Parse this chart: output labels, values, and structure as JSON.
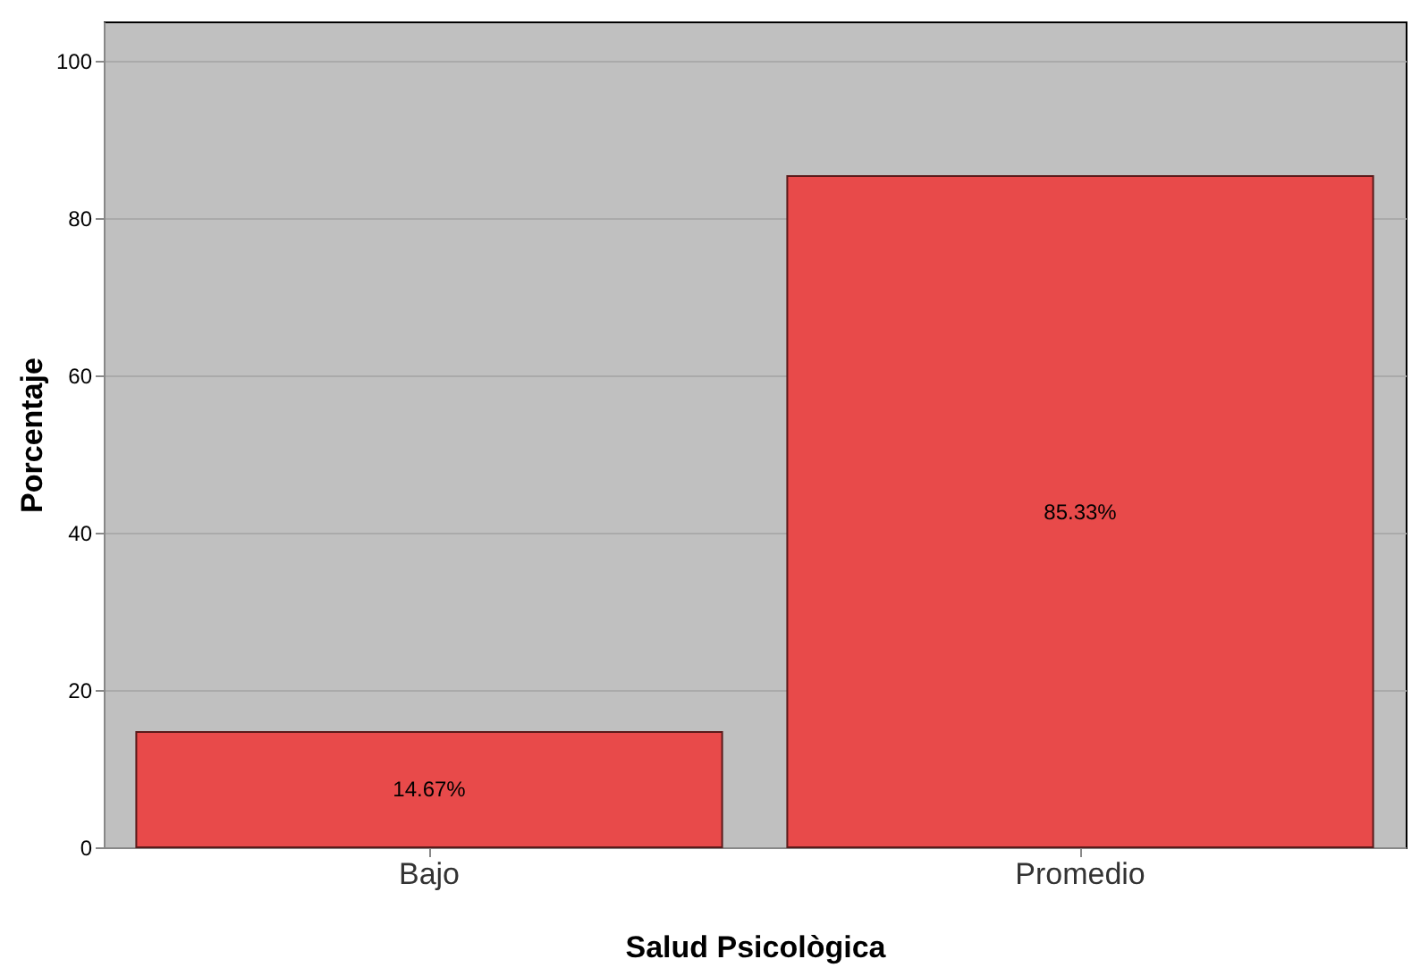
{
  "chart_data": {
    "type": "bar",
    "xlabel": "Salud Psicològica",
    "ylabel": "Porcentaje",
    "categories": [
      "Bajo",
      "Promedio"
    ],
    "values": [
      14.67,
      85.33
    ],
    "value_labels": [
      "14.67%",
      "85.33%"
    ],
    "color": "#e84a4a",
    "ylim": [
      0,
      105
    ],
    "yticks": [
      0,
      20,
      40,
      60,
      80,
      100
    ],
    "grid": "y"
  }
}
